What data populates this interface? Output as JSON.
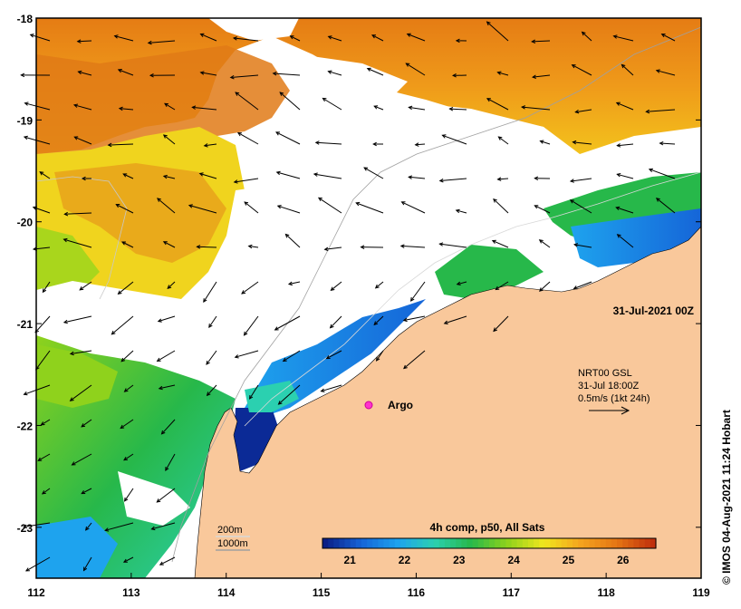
{
  "map": {
    "date_label": "31-Jul-2021 00Z",
    "current_info": {
      "line1": "NRT00 GSL",
      "line2": "31-Jul 18:00Z",
      "line3": "0.5m/s (1kt 24h)"
    },
    "float_label": "Argo",
    "depth_legend": [
      "200m",
      "1000m"
    ],
    "colorbar": {
      "title": "4h comp, p50, All Sats",
      "ticks": [
        "21",
        "22",
        "23",
        "24",
        "25",
        "26"
      ],
      "range": [
        20.5,
        26.6
      ],
      "colors": [
        "#0b1f86",
        "#1565d8",
        "#1ea3ee",
        "#2bd0b0",
        "#27b84a",
        "#8fd21c",
        "#f0e61e",
        "#f4a41e",
        "#e57614",
        "#c0300c"
      ]
    },
    "credit": "© IMOS 04-Aug-2021 11:24 Hobart",
    "lon_ticks": [
      "112",
      "113",
      "114",
      "115",
      "116",
      "117",
      "118",
      "119"
    ],
    "lat_ticks": [
      "-18",
      "-19",
      "-20",
      "-21",
      "-22",
      "-23"
    ],
    "lon_range": [
      112,
      119
    ],
    "lat_range": [
      -23.5,
      -18
    ],
    "land_color": "#f9c89b",
    "argo_color": "#ff33cc"
  }
}
